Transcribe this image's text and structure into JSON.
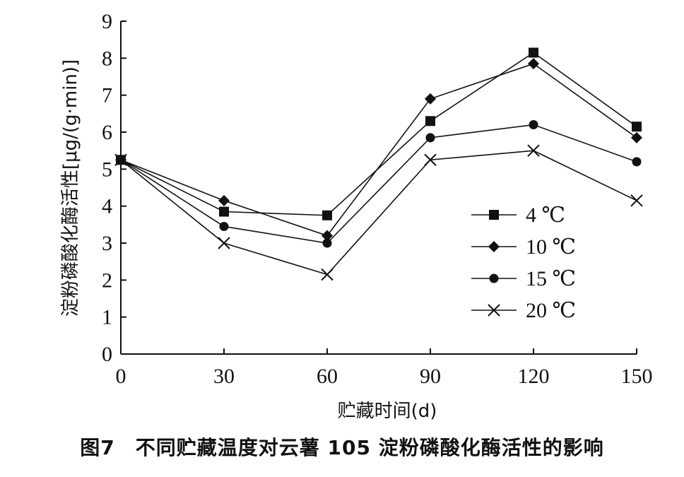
{
  "chart_data": {
    "type": "line",
    "x": [
      0,
      30,
      60,
      90,
      120,
      150
    ],
    "xlabel": "贮藏时间(d)",
    "ylabel": "淀粉磷酸化酶活性[μg/(g·min)]",
    "xlim": [
      0,
      150
    ],
    "ylim": [
      0,
      9
    ],
    "xticks": [
      0,
      30,
      60,
      90,
      120,
      150
    ],
    "yticks": [
      0,
      1,
      2,
      3,
      4,
      5,
      6,
      7,
      8,
      9
    ],
    "grid": false,
    "legend_position": "right-center",
    "series": [
      {
        "name": "4 ℃",
        "marker": "square",
        "values": [
          5.25,
          3.85,
          3.75,
          6.3,
          8.15,
          6.15
        ]
      },
      {
        "name": "10 ℃",
        "marker": "diamond",
        "values": [
          5.25,
          4.15,
          3.2,
          6.9,
          7.85,
          5.85
        ]
      },
      {
        "name": "15 ℃",
        "marker": "circle",
        "values": [
          5.25,
          3.45,
          3.0,
          5.85,
          6.2,
          5.2
        ]
      },
      {
        "name": "20 ℃",
        "marker": "x",
        "values": [
          5.25,
          3.0,
          2.15,
          5.25,
          5.5,
          4.15
        ]
      }
    ],
    "line_color": "#111111"
  },
  "caption": "图7　不同贮藏温度对云薯 105 淀粉磷酸化酶活性的影响"
}
